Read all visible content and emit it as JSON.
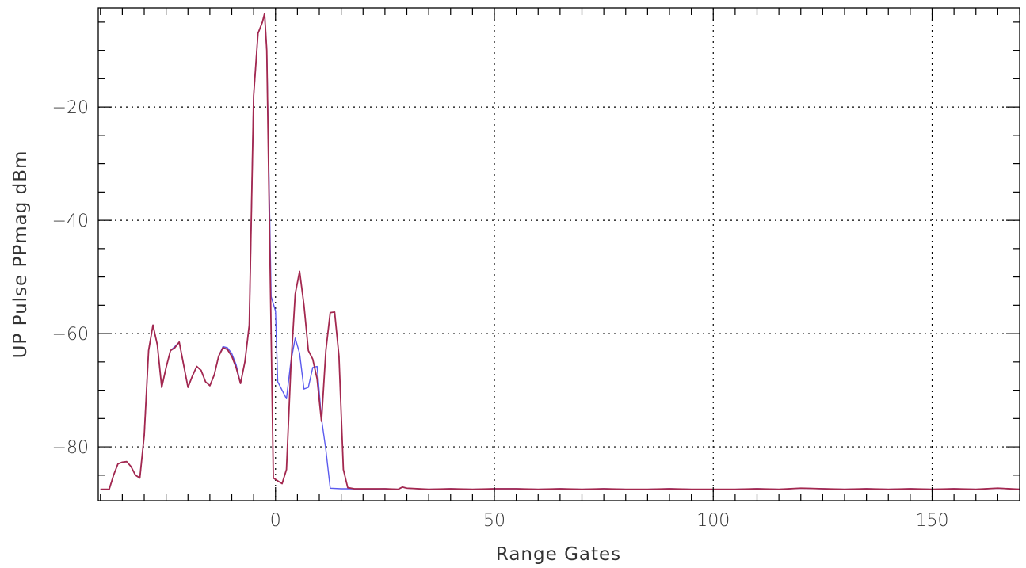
{
  "chart_data": {
    "type": "line",
    "title": "",
    "xlabel": "Range Gates",
    "ylabel": "UP Pulse PPmag dBm",
    "xlim": [
      -40.5,
      170
    ],
    "ylim": [
      -89.5,
      -2.5
    ],
    "x_ticks": [
      0,
      50,
      100,
      150
    ],
    "x_tick_labels": [
      "0",
      "50",
      "100",
      "150"
    ],
    "x_minor_step": 5,
    "y_ticks": [
      -20,
      -40,
      -60,
      -80
    ],
    "y_tick_labels": [
      "−20",
      "−40",
      "−60",
      "−80"
    ],
    "y_minor_step": 5,
    "grid": true,
    "series": [
      {
        "color": "#5a5aee",
        "points": [
          [
            -40,
            -87.5
          ],
          [
            -38,
            -87.5
          ],
          [
            -37,
            -85
          ],
          [
            -36,
            -83
          ],
          [
            -35,
            -82.7
          ],
          [
            -34,
            -82.6
          ],
          [
            -33,
            -83.5
          ],
          [
            -32,
            -85
          ],
          [
            -31,
            -85.5
          ],
          [
            -30,
            -78
          ],
          [
            -29,
            -63
          ],
          [
            -28,
            -58.5
          ],
          [
            -27,
            -62
          ],
          [
            -26,
            -69.5
          ],
          [
            -25,
            -66
          ],
          [
            -24,
            -63
          ],
          [
            -23,
            -62.3
          ],
          [
            -22,
            -61.5
          ],
          [
            -21,
            -65.5
          ],
          [
            -20,
            -69.5
          ],
          [
            -19,
            -67.5
          ],
          [
            -18,
            -65.8
          ],
          [
            -17,
            -66.5
          ],
          [
            -16,
            -68.5
          ],
          [
            -15,
            -69.2
          ],
          [
            -14,
            -67.3
          ],
          [
            -13,
            -64
          ],
          [
            -12,
            -62.3
          ],
          [
            -11,
            -62.5
          ],
          [
            -10,
            -63.5
          ],
          [
            -9,
            -65.5
          ],
          [
            -8,
            -68.8
          ],
          [
            -7,
            -65
          ],
          [
            -6,
            -58.5
          ],
          [
            -5,
            -18
          ],
          [
            -4,
            -7
          ],
          [
            -3,
            -5
          ],
          [
            -2.5,
            -3.5
          ],
          [
            -2,
            -10
          ],
          [
            -1,
            -53.5
          ],
          [
            0,
            -56
          ],
          [
            0.5,
            -68.5
          ],
          [
            1.5,
            -70
          ],
          [
            2.5,
            -71.5
          ],
          [
            3.5,
            -65
          ],
          [
            4.5,
            -60.8
          ],
          [
            5.5,
            -63.5
          ],
          [
            6.5,
            -69.8
          ],
          [
            7.5,
            -69.5
          ],
          [
            8.5,
            -66
          ],
          [
            9.5,
            -65.8
          ],
          [
            10.5,
            -75
          ],
          [
            11.5,
            -80.5
          ],
          [
            12.5,
            -87.3
          ],
          [
            15,
            -87.4
          ],
          [
            17,
            -87.4
          ],
          [
            20,
            -87.5
          ],
          [
            25,
            -87.4
          ],
          [
            28,
            -87.5
          ],
          [
            29,
            -87.1
          ],
          [
            30,
            -87.3
          ],
          [
            35,
            -87.5
          ],
          [
            40,
            -87.4
          ],
          [
            45,
            -87.5
          ],
          [
            50,
            -87.4
          ],
          [
            55,
            -87.4
          ],
          [
            60,
            -87.5
          ],
          [
            65,
            -87.4
          ],
          [
            70,
            -87.5
          ],
          [
            75,
            -87.4
          ],
          [
            80,
            -87.5
          ],
          [
            85,
            -87.5
          ],
          [
            90,
            -87.4
          ],
          [
            95,
            -87.5
          ],
          [
            100,
            -87.5
          ],
          [
            105,
            -87.5
          ],
          [
            110,
            -87.4
          ],
          [
            115,
            -87.5
          ],
          [
            120,
            -87.3
          ],
          [
            125,
            -87.4
          ],
          [
            130,
            -87.5
          ],
          [
            135,
            -87.4
          ],
          [
            140,
            -87.5
          ],
          [
            145,
            -87.4
          ],
          [
            150,
            -87.5
          ],
          [
            155,
            -87.4
          ],
          [
            160,
            -87.5
          ],
          [
            165,
            -87.3
          ],
          [
            170,
            -87.5
          ]
        ]
      },
      {
        "color": "#a3284f",
        "points": [
          [
            -40,
            -87.5
          ],
          [
            -38,
            -87.5
          ],
          [
            -37,
            -85
          ],
          [
            -36,
            -83
          ],
          [
            -35,
            -82.7
          ],
          [
            -34,
            -82.6
          ],
          [
            -33,
            -83.5
          ],
          [
            -32,
            -85
          ],
          [
            -31,
            -85.5
          ],
          [
            -30,
            -78
          ],
          [
            -29,
            -63
          ],
          [
            -28,
            -58.5
          ],
          [
            -27,
            -62
          ],
          [
            -26,
            -69.5
          ],
          [
            -25,
            -66
          ],
          [
            -24,
            -63
          ],
          [
            -23,
            -62.5
          ],
          [
            -22,
            -61.5
          ],
          [
            -21,
            -65.5
          ],
          [
            -20,
            -69.5
          ],
          [
            -19,
            -67.5
          ],
          [
            -18,
            -65.8
          ],
          [
            -17,
            -66.5
          ],
          [
            -16,
            -68.5
          ],
          [
            -15,
            -69.2
          ],
          [
            -14,
            -67.3
          ],
          [
            -13,
            -64
          ],
          [
            -12,
            -62.5
          ],
          [
            -11,
            -62.8
          ],
          [
            -10,
            -64
          ],
          [
            -9,
            -66
          ],
          [
            -8,
            -68.8
          ],
          [
            -7,
            -65
          ],
          [
            -6,
            -58.5
          ],
          [
            -5,
            -18
          ],
          [
            -4,
            -7
          ],
          [
            -3,
            -5
          ],
          [
            -2.5,
            -3.5
          ],
          [
            -2,
            -10
          ],
          [
            -1,
            -60
          ],
          [
            -0.5,
            -85.5
          ],
          [
            0.5,
            -86
          ],
          [
            1.5,
            -86.5
          ],
          [
            2.5,
            -84
          ],
          [
            3.5,
            -66
          ],
          [
            4.5,
            -53
          ],
          [
            5.5,
            -49
          ],
          [
            6.5,
            -55
          ],
          [
            7.5,
            -63
          ],
          [
            8.5,
            -64.5
          ],
          [
            9.5,
            -68
          ],
          [
            10.5,
            -75.5
          ],
          [
            11.5,
            -63
          ],
          [
            12.5,
            -56.3
          ],
          [
            13.5,
            -56.2
          ],
          [
            14.5,
            -64
          ],
          [
            15.5,
            -84
          ],
          [
            16.5,
            -87.2
          ],
          [
            18,
            -87.4
          ],
          [
            20,
            -87.4
          ],
          [
            25,
            -87.4
          ],
          [
            28,
            -87.5
          ],
          [
            29,
            -87.1
          ],
          [
            30,
            -87.3
          ],
          [
            35,
            -87.5
          ],
          [
            40,
            -87.4
          ],
          [
            45,
            -87.5
          ],
          [
            50,
            -87.4
          ],
          [
            55,
            -87.4
          ],
          [
            60,
            -87.5
          ],
          [
            65,
            -87.4
          ],
          [
            70,
            -87.5
          ],
          [
            75,
            -87.4
          ],
          [
            80,
            -87.5
          ],
          [
            85,
            -87.5
          ],
          [
            90,
            -87.4
          ],
          [
            95,
            -87.5
          ],
          [
            100,
            -87.5
          ],
          [
            105,
            -87.5
          ],
          [
            110,
            -87.4
          ],
          [
            115,
            -87.5
          ],
          [
            120,
            -87.3
          ],
          [
            125,
            -87.4
          ],
          [
            130,
            -87.5
          ],
          [
            135,
            -87.4
          ],
          [
            140,
            -87.5
          ],
          [
            145,
            -87.4
          ],
          [
            150,
            -87.5
          ],
          [
            155,
            -87.4
          ],
          [
            160,
            -87.5
          ],
          [
            165,
            -87.3
          ],
          [
            170,
            -87.5
          ]
        ]
      }
    ]
  }
}
